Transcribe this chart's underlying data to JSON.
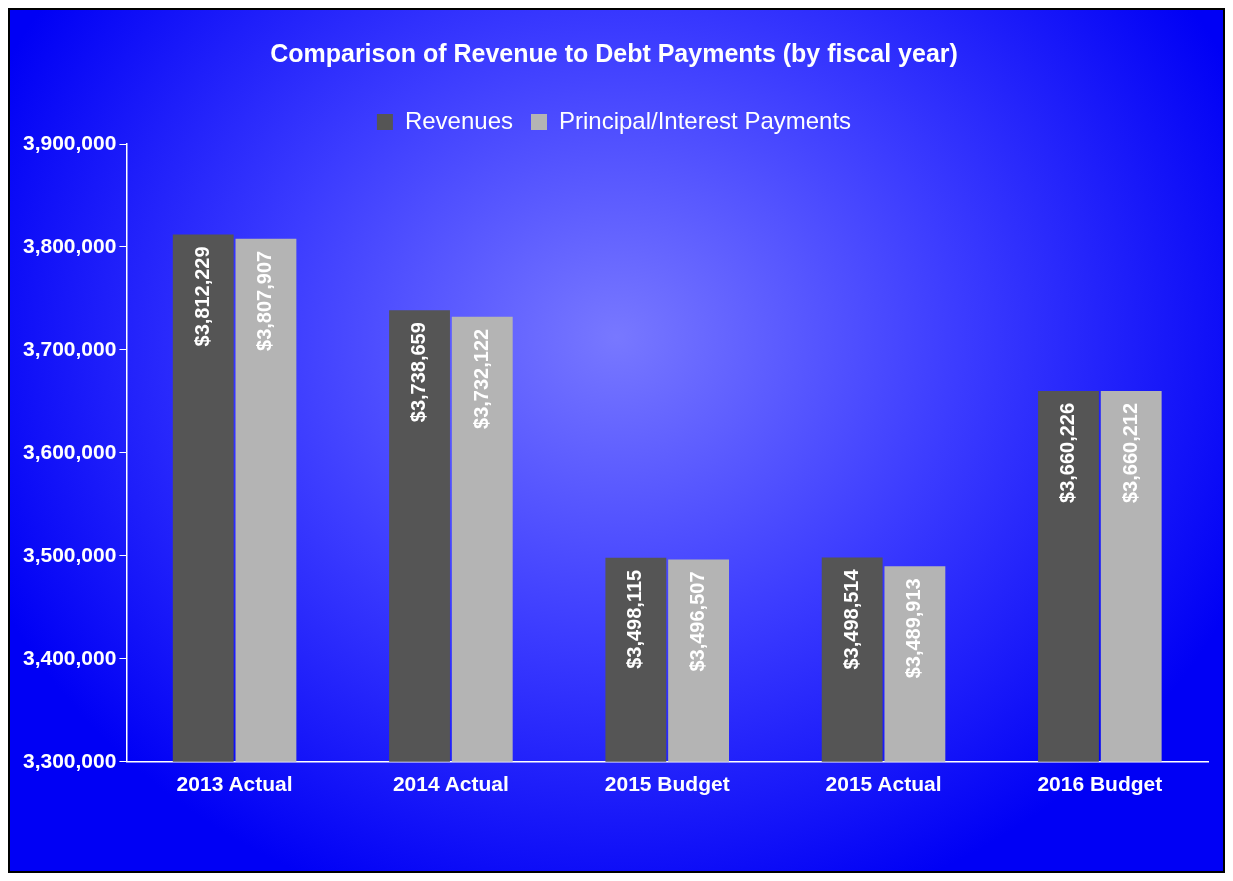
{
  "chart_data": {
    "type": "bar",
    "title": "Comparison of Revenue to Debt Payments (by fiscal year)",
    "categories": [
      "2013 Actual",
      "2014 Actual",
      "2015 Budget",
      "2015 Actual",
      "2016 Budget"
    ],
    "series": [
      {
        "name": "Revenues",
        "color": "#555555",
        "values": [
          3812229,
          3738659,
          3498115,
          3498514,
          3660226
        ],
        "value_labels": [
          "$3,812,229",
          "$3,738,659",
          "$3,498,115",
          "$3,498,514",
          "$3,660,226"
        ]
      },
      {
        "name": "Principal/Interest Payments",
        "color": "#b4b4b4",
        "values": [
          3807907,
          3732122,
          3496507,
          3489913,
          3660212
        ],
        "value_labels": [
          "$3,807,907",
          "$3,732,122",
          "$3,496,507",
          "$3,489,913",
          "$3,660,212"
        ]
      }
    ],
    "ylim": [
      3300000,
      3900000
    ],
    "yticks": [
      {
        "value": 3300000,
        "label": "3,300,000"
      },
      {
        "value": 3400000,
        "label": "3,400,000"
      },
      {
        "value": 3500000,
        "label": "3,500,000"
      },
      {
        "value": 3600000,
        "label": "3,600,000"
      },
      {
        "value": 3700000,
        "label": "3,700,000"
      },
      {
        "value": 3800000,
        "label": "3,800,000"
      },
      {
        "value": 3900000,
        "label": "3,900,000"
      }
    ],
    "grid": false,
    "legend": "top"
  }
}
